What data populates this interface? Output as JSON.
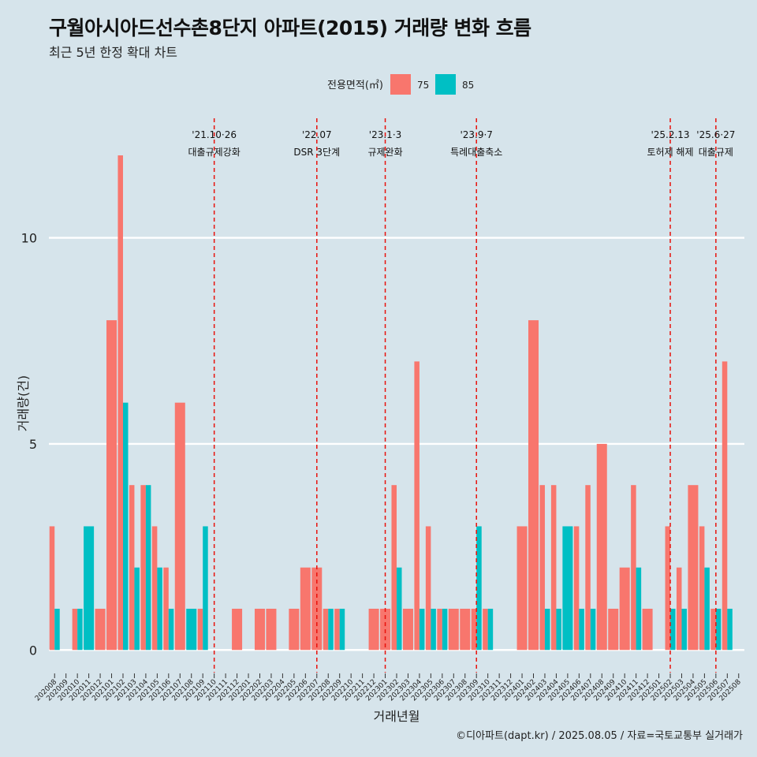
{
  "header": {
    "title": "구월아시아드선수촌8단지 아파트(2015) 거래량 변화 흐름",
    "subtitle": "최근 5년 한정 확대 차트"
  },
  "caption": "©디아파트(dapt.kr) / 2025.08.05 / 자료=국토교통부 실거래가",
  "colors": {
    "s75": "#f8766d",
    "s85": "#00bfc4",
    "vline": "#e8120c",
    "grid": "#ffffff",
    "bg": "#d6e4eb"
  },
  "chart_data": {
    "type": "bar",
    "xlabel": "거래년월",
    "ylabel": "거래량(건)",
    "ylim": [
      -0.55,
      12.9
    ],
    "yticks": [
      0,
      5,
      10
    ],
    "legend": {
      "title": "전용면적(㎡)",
      "position": "top"
    },
    "categories": [
      "202008",
      "202009",
      "202010",
      "202011",
      "202012",
      "202101",
      "202102",
      "202103",
      "202104",
      "202105",
      "202106",
      "202107",
      "202108",
      "202109",
      "202110",
      "202111",
      "202112",
      "202201",
      "202202",
      "202203",
      "202204",
      "202205",
      "202206",
      "202207",
      "202208",
      "202209",
      "202210",
      "202211",
      "202212",
      "202301",
      "202302",
      "202303",
      "202304",
      "202305",
      "202306",
      "202307",
      "202308",
      "202309",
      "202310",
      "202311",
      "202312",
      "202401",
      "202402",
      "202403",
      "202404",
      "202405",
      "202406",
      "202407",
      "202408",
      "202409",
      "202410",
      "202411",
      "202412",
      "202501",
      "202502",
      "202503",
      "202504",
      "202505",
      "202506",
      "202507",
      "202508"
    ],
    "series": [
      {
        "name": "75",
        "color": "#f8766d",
        "values": [
          3,
          0,
          1,
          0,
          1,
          8,
          12,
          4,
          4,
          3,
          2,
          6,
          0,
          1,
          0,
          0,
          1,
          0,
          1,
          1,
          0,
          1,
          2,
          2,
          1,
          1,
          0,
          0,
          1,
          1,
          4,
          1,
          7,
          3,
          1,
          1,
          1,
          1,
          1,
          0,
          0,
          3,
          8,
          4,
          4,
          0,
          3,
          4,
          5,
          1,
          2,
          4,
          1,
          0,
          3,
          2,
          4,
          3,
          1,
          7,
          0
        ]
      },
      {
        "name": "85",
        "color": "#00bfc4",
        "values": [
          1,
          0,
          1,
          3,
          0,
          0,
          6,
          2,
          4,
          2,
          1,
          0,
          1,
          3,
          0,
          0,
          0,
          0,
          0,
          0,
          0,
          0,
          0,
          0,
          1,
          1,
          0,
          0,
          0,
          0,
          2,
          0,
          1,
          1,
          1,
          0,
          0,
          3,
          1,
          0,
          0,
          0,
          0,
          1,
          1,
          3,
          1,
          1,
          0,
          0,
          0,
          2,
          0,
          0,
          1,
          1,
          0,
          2,
          1,
          1,
          0
        ]
      }
    ],
    "annotations": [
      {
        "x": "202110",
        "date": "'21.10·26",
        "label": "대출규제강화"
      },
      {
        "x": "202207",
        "date": "'22.07",
        "label": "DSR 3단계"
      },
      {
        "x": "202301",
        "date": "'23.1·3",
        "label": "규제완화"
      },
      {
        "x": "202309",
        "date": "'23.9·7",
        "label": "특례대출축소"
      },
      {
        "x": "202502",
        "date": "'25.2.13",
        "label": "토허제 해제"
      },
      {
        "x": "202506",
        "date": "'25.6·27",
        "label": "대출규제"
      }
    ]
  }
}
